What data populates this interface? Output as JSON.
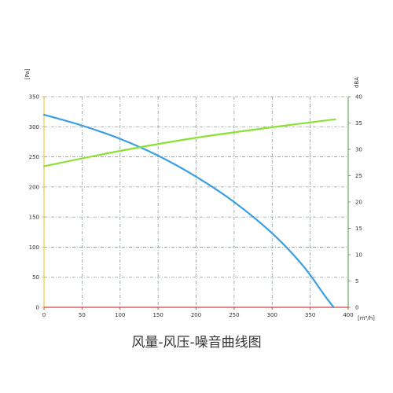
{
  "chart_data": {
    "type": "line",
    "title": "风量-风压-噪音曲线图",
    "xlabel": "[m³/h]",
    "ylabel": "[Pa]",
    "y2label": "dBA",
    "xlim": [
      0,
      400
    ],
    "ylim": [
      0,
      350
    ],
    "y2lim": [
      0,
      40
    ],
    "x_ticks": [
      "0",
      "50",
      "100",
      "150",
      "200",
      "250",
      "300",
      "350",
      "400"
    ],
    "y_ticks": [
      "0",
      "50",
      "100",
      "150",
      "200",
      "250",
      "300",
      "350"
    ],
    "y2_ticks": [
      "0",
      "5",
      "10",
      "15",
      "20",
      "25",
      "30",
      "35",
      "40"
    ],
    "grid": true,
    "series": [
      {
        "axis": "left",
        "color": "#3a9fe0",
        "x": [
          0,
          50,
          100,
          150,
          200,
          250,
          300,
          340,
          370,
          381
        ],
        "y": [
          320,
          302,
          280,
          252,
          217,
          175,
          123,
          70,
          18,
          0
        ]
      },
      {
        "axis": "right",
        "color": "#8be034",
        "x": [
          0,
          100,
          200,
          300,
          383
        ],
        "y": [
          26.8,
          29.7,
          32.2,
          34.2,
          35.7
        ]
      }
    ],
    "colors": {
      "grid": "#8a9a9a",
      "x_axis": "#d84040",
      "y_axis": "#e8c840",
      "y2_axis": "#66aa66"
    }
  }
}
